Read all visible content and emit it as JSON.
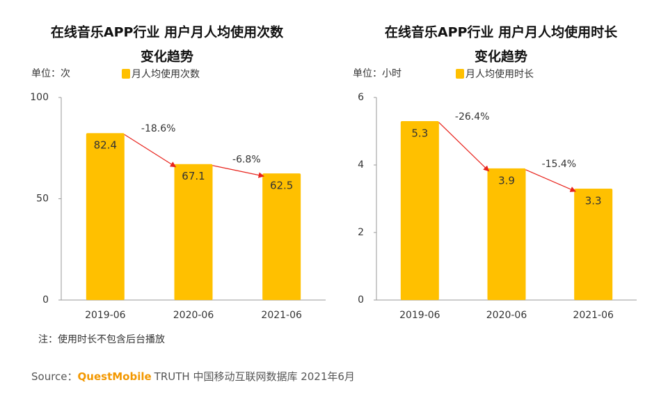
{
  "chart_data": [
    {
      "type": "bar",
      "title": [
        "在线音乐APP行业 用户月人均使用次数",
        "变化趋势"
      ],
      "unit": "单位：次",
      "categories": [
        "2019-06",
        "2020-06",
        "2021-06"
      ],
      "series": [
        {
          "name": "月人均使用次数",
          "color": "#ffc000",
          "values": [
            82.4,
            67.1,
            62.5
          ]
        }
      ],
      "annotations": [
        "-18.6%",
        "-6.8%"
      ],
      "ylim": [
        0,
        100
      ],
      "yticks": [
        0,
        50,
        100
      ]
    },
    {
      "type": "bar",
      "title": [
        "在线音乐APP行业 用户月人均使用时长",
        "变化趋势"
      ],
      "unit": "单位：小时",
      "categories": [
        "2019-06",
        "2020-06",
        "2021-06"
      ],
      "series": [
        {
          "name": "月人均使用时长",
          "color": "#ffc000",
          "values": [
            5.3,
            3.9,
            3.3
          ]
        }
      ],
      "annotations": [
        "-26.4%",
        "-15.4%"
      ],
      "ylim": [
        0,
        6
      ],
      "yticks": [
        0,
        2,
        4,
        6
      ]
    }
  ],
  "note": "注：使用时长不包含后台播放",
  "source": {
    "prefix": "Source：",
    "brand": "QuestMobile",
    "text": "TRUTH 中国移动互联网数据库 2021年6月"
  }
}
